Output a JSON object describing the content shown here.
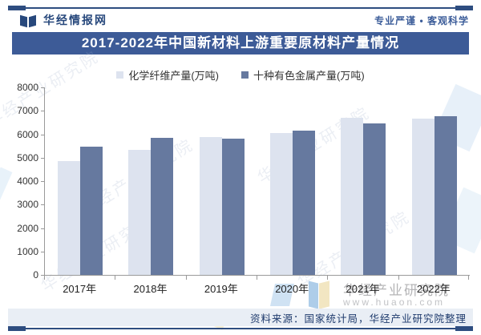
{
  "header": {
    "logo_text": "华经情报网",
    "slogan": "专业严谨 • 客观科学"
  },
  "title": "2017-2022年中国新材料上游重要原材料产量情况",
  "chart_data": {
    "type": "bar",
    "title": "2017-2022年中国新材料上游重要原材料产量情况",
    "categories": [
      "2017年",
      "2018年",
      "2019年",
      "2020年",
      "2021年",
      "2022年"
    ],
    "series": [
      {
        "name": "化学纤维产量(万吨)",
        "color": "#dde3ef",
        "values": [
          4850,
          5350,
          5880,
          6060,
          6700,
          6680
        ]
      },
      {
        "name": "十种有色金属产量(万吨)",
        "color": "#66799f",
        "values": [
          5480,
          5850,
          5820,
          6160,
          6450,
          6780
        ]
      }
    ],
    "xlabel": "",
    "ylabel": "",
    "ylim": [
      0,
      8000
    ],
    "y_ticks": [
      0,
      1000,
      2000,
      3000,
      4000,
      5000,
      6000,
      7000,
      8000
    ],
    "grid": false,
    "legend_position": "top"
  },
  "watermark": {
    "brand": "华经产业研究院",
    "url": "www.huaon.com",
    "diagonal_text": "华经产业研究院"
  },
  "footer": {
    "source": "资料来源：国家统计局，华经产业研究院整理"
  },
  "colors": {
    "brand_navy": "#2e4d80",
    "title_bar_bg": "#3d5b97",
    "series_light": "#dde3ef",
    "series_dark": "#66799f",
    "footer_band_bg": "#e9eef5",
    "watermark_gray": "#b4b4b6"
  }
}
